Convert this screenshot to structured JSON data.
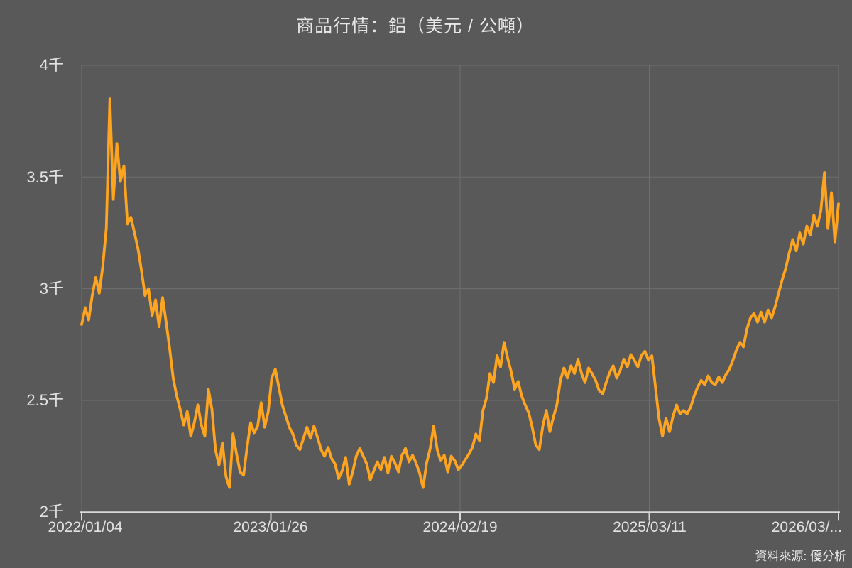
{
  "title": "商品行情：鋁（美元 / 公噸）",
  "source": "資料來源: 優分析",
  "chart_data": {
    "type": "line",
    "title": "商品行情：鋁（美元 / 公噸）",
    "series_name": "鋁",
    "unit": "美元/公噸",
    "background_color": "#595959",
    "text_color": "#E8E7E7",
    "line_color": "#FFA41E",
    "grid": true,
    "legend": "none",
    "ylim": [
      2000,
      4000
    ],
    "y_tick_values": [
      4000,
      3500,
      3000,
      2500,
      2000
    ],
    "y_tick_labels": [
      "4千",
      "3.5千",
      "3千",
      "2.5千",
      "2千"
    ],
    "x_tick_labels": [
      "2022/01/04",
      "2023/01/26",
      "2024/02/19",
      "2025/03/11",
      "2026/03/..."
    ],
    "values": [
      2840,
      2915,
      2860,
      2970,
      3050,
      2980,
      3100,
      3270,
      3850,
      3400,
      3650,
      3480,
      3550,
      3290,
      3320,
      3250,
      3180,
      3080,
      2970,
      3000,
      2880,
      2950,
      2830,
      2960,
      2850,
      2730,
      2600,
      2520,
      2460,
      2390,
      2450,
      2340,
      2400,
      2480,
      2390,
      2340,
      2550,
      2460,
      2280,
      2210,
      2310,
      2160,
      2110,
      2350,
      2260,
      2180,
      2165,
      2290,
      2400,
      2355,
      2385,
      2490,
      2380,
      2450,
      2600,
      2640,
      2560,
      2480,
      2430,
      2380,
      2350,
      2300,
      2280,
      2330,
      2380,
      2330,
      2385,
      2335,
      2280,
      2250,
      2290,
      2240,
      2215,
      2150,
      2185,
      2245,
      2125,
      2180,
      2250,
      2285,
      2250,
      2215,
      2145,
      2185,
      2225,
      2190,
      2245,
      2175,
      2250,
      2220,
      2180,
      2255,
      2285,
      2225,
      2255,
      2220,
      2175,
      2110,
      2220,
      2285,
      2385,
      2280,
      2230,
      2255,
      2180,
      2250,
      2230,
      2190,
      2210,
      2235,
      2260,
      2290,
      2350,
      2320,
      2455,
      2510,
      2620,
      2580,
      2700,
      2650,
      2760,
      2690,
      2630,
      2550,
      2585,
      2520,
      2480,
      2445,
      2380,
      2300,
      2280,
      2385,
      2455,
      2360,
      2425,
      2480,
      2590,
      2645,
      2600,
      2655,
      2620,
      2685,
      2620,
      2580,
      2645,
      2620,
      2590,
      2545,
      2530,
      2580,
      2625,
      2655,
      2600,
      2635,
      2685,
      2650,
      2705,
      2680,
      2650,
      2700,
      2720,
      2680,
      2700,
      2560,
      2420,
      2340,
      2420,
      2360,
      2430,
      2480,
      2440,
      2455,
      2440,
      2470,
      2520,
      2560,
      2590,
      2570,
      2610,
      2580,
      2570,
      2605,
      2580,
      2615,
      2640,
      2680,
      2725,
      2760,
      2740,
      2820,
      2870,
      2890,
      2850,
      2895,
      2850,
      2905,
      2870,
      2920,
      2980,
      3040,
      3090,
      3160,
      3220,
      3170,
      3250,
      3200,
      3280,
      3240,
      3330,
      3280,
      3350,
      3520,
      3270,
      3430,
      3210,
      3380
    ]
  }
}
